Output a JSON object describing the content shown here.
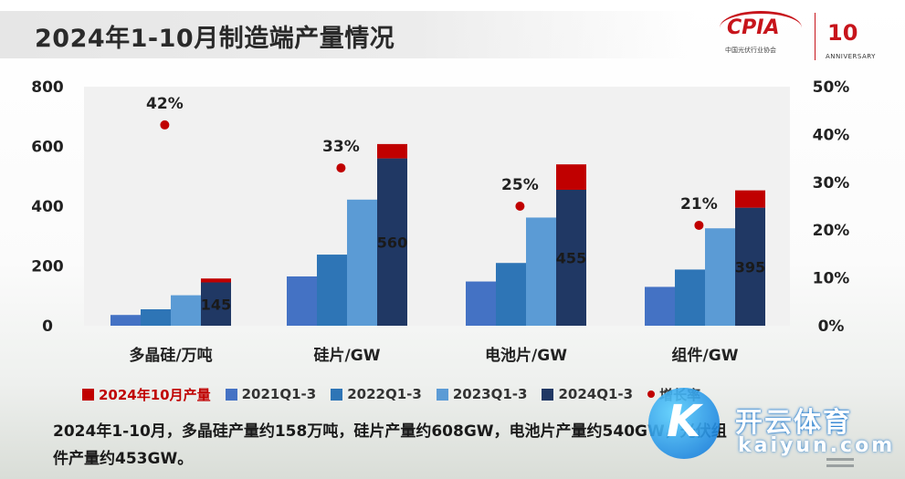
{
  "header": {
    "title": "2024年1-10月制造端产量情况"
  },
  "logos": {
    "cpia_text": "CPIA",
    "cpia_sub": "中国光伏行业协会",
    "anniversary_mark": "10",
    "anniversary_text": "ANNIVERSARY"
  },
  "chart_data": {
    "type": "bar",
    "categories": [
      "多晶硅/万吨",
      "硅片/GW",
      "电池片/GW",
      "组件/GW"
    ],
    "series": [
      {
        "name": "2021Q1-3",
        "values": [
          36,
          165,
          148,
          130
        ]
      },
      {
        "name": "2022Q1-3",
        "values": [
          55,
          238,
          210,
          188
        ]
      },
      {
        "name": "2023Q1-3",
        "values": [
          102,
          422,
          362,
          326
        ]
      },
      {
        "name": "2024Q1-3",
        "values": [
          145,
          560,
          455,
          395
        ],
        "data_labels": [
          "145",
          "560",
          "455",
          "395"
        ]
      },
      {
        "name": "2024年10月产量",
        "stacked_on": "2024Q1-3",
        "values": [
          13,
          48,
          85,
          58
        ]
      },
      {
        "name": "增长率",
        "axis": "right",
        "values": [
          42,
          33,
          25,
          21
        ],
        "data_labels": [
          "42%",
          "33%",
          "25%",
          "21%"
        ]
      }
    ],
    "left_axis": {
      "range": [
        0,
        800
      ],
      "ticks": [
        "0",
        "200",
        "400",
        "600",
        "800"
      ]
    },
    "right_axis": {
      "range": [
        0,
        50
      ],
      "ticks": [
        "0%",
        "10%",
        "20%",
        "30%",
        "40%",
        "50%"
      ]
    },
    "legend_position": "bottom",
    "grid": false,
    "colors": {
      "2021Q1-3": "#4472c4",
      "2022Q1-3": "#2e75b6",
      "2023Q1-3": "#5b9bd5",
      "2024Q1-3": "#203864",
      "2024年10月产量": "#c00000",
      "增长率": "#c00000"
    }
  },
  "legend": {
    "items": [
      {
        "label": "2024年10月产量",
        "color": "#c00000"
      },
      {
        "label": "2021Q1-3",
        "color": "#4472c4"
      },
      {
        "label": "2022Q1-3",
        "color": "#2e75b6"
      },
      {
        "label": "2023Q1-3",
        "color": "#5b9bd5"
      },
      {
        "label": "2024Q1-3",
        "color": "#203864"
      },
      {
        "label": "增长率",
        "color": "#c00000"
      }
    ]
  },
  "note": {
    "line1": "2024年1-10月，多晶硅产量约158万吨，硅片产量约608GW，电池片产量约540GW，光伏组",
    "line2": "件产量约453GW。"
  },
  "watermark": {
    "cn": "开云体育",
    "url": "kaiyun.com",
    "mark": "K"
  }
}
